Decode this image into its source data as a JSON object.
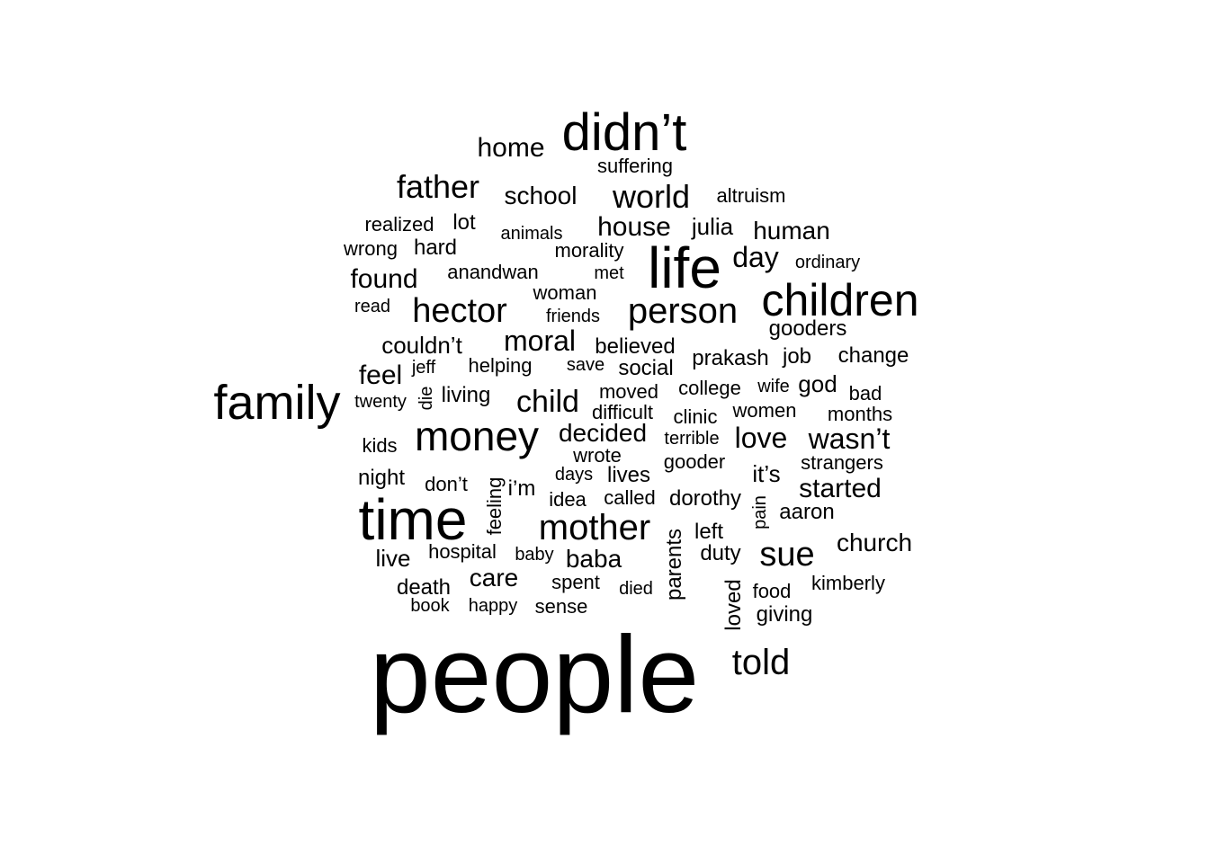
{
  "words": [
    {
      "text": "people"
    },
    {
      "text": "time"
    },
    {
      "text": "family"
    },
    {
      "text": "didn’t"
    },
    {
      "text": "life"
    },
    {
      "text": "children"
    },
    {
      "text": "money"
    },
    {
      "text": "mother"
    },
    {
      "text": "person"
    },
    {
      "text": "hector"
    },
    {
      "text": "father"
    },
    {
      "text": "world"
    },
    {
      "text": "told"
    },
    {
      "text": "sue"
    },
    {
      "text": "child"
    },
    {
      "text": "moral"
    },
    {
      "text": "love"
    },
    {
      "text": "wasn’t"
    },
    {
      "text": "started"
    },
    {
      "text": "home"
    },
    {
      "text": "house"
    },
    {
      "text": "human"
    },
    {
      "text": "day"
    },
    {
      "text": "found"
    },
    {
      "text": "feel"
    },
    {
      "text": "decided"
    },
    {
      "text": "church"
    },
    {
      "text": "school"
    },
    {
      "text": "care"
    },
    {
      "text": "baba"
    },
    {
      "text": "couldn’t"
    },
    {
      "text": "julia"
    },
    {
      "text": "believed"
    },
    {
      "text": "gooders"
    },
    {
      "text": "god"
    },
    {
      "text": "prakash"
    },
    {
      "text": "change"
    },
    {
      "text": "job"
    },
    {
      "text": "it’s"
    },
    {
      "text": "aaron"
    },
    {
      "text": "social"
    },
    {
      "text": "living"
    },
    {
      "text": "lot"
    },
    {
      "text": "hard"
    },
    {
      "text": "altruism"
    },
    {
      "text": "suffering"
    },
    {
      "text": "realized"
    },
    {
      "text": "wrong"
    },
    {
      "text": "anandwan"
    },
    {
      "text": "morality"
    },
    {
      "text": "animals"
    },
    {
      "text": "met"
    },
    {
      "text": "woman"
    },
    {
      "text": "ordinary"
    },
    {
      "text": "read"
    },
    {
      "text": "friends"
    },
    {
      "text": "jeff"
    },
    {
      "text": "helping"
    },
    {
      "text": "save"
    },
    {
      "text": "twenty"
    },
    {
      "text": "moved"
    },
    {
      "text": "college"
    },
    {
      "text": "wife"
    },
    {
      "text": "bad"
    },
    {
      "text": "difficult"
    },
    {
      "text": "clinic"
    },
    {
      "text": "women"
    },
    {
      "text": "months"
    },
    {
      "text": "kids"
    },
    {
      "text": "terrible"
    },
    {
      "text": "wrote"
    },
    {
      "text": "strangers"
    },
    {
      "text": "night"
    },
    {
      "text": "days"
    },
    {
      "text": "lives"
    },
    {
      "text": "gooder"
    },
    {
      "text": "don’t"
    },
    {
      "text": "i’m"
    },
    {
      "text": "idea"
    },
    {
      "text": "called"
    },
    {
      "text": "dorothy"
    },
    {
      "text": "left"
    },
    {
      "text": "duty"
    },
    {
      "text": "live"
    },
    {
      "text": "hospital"
    },
    {
      "text": "baby"
    },
    {
      "text": "death"
    },
    {
      "text": "spent"
    },
    {
      "text": "died"
    },
    {
      "text": "kimberly"
    },
    {
      "text": "food"
    },
    {
      "text": "book"
    },
    {
      "text": "happy"
    },
    {
      "text": "sense"
    },
    {
      "text": "giving"
    },
    {
      "text": "die"
    },
    {
      "text": "feeling"
    },
    {
      "text": "parents"
    },
    {
      "text": "pain"
    },
    {
      "text": "loved"
    }
  ]
}
